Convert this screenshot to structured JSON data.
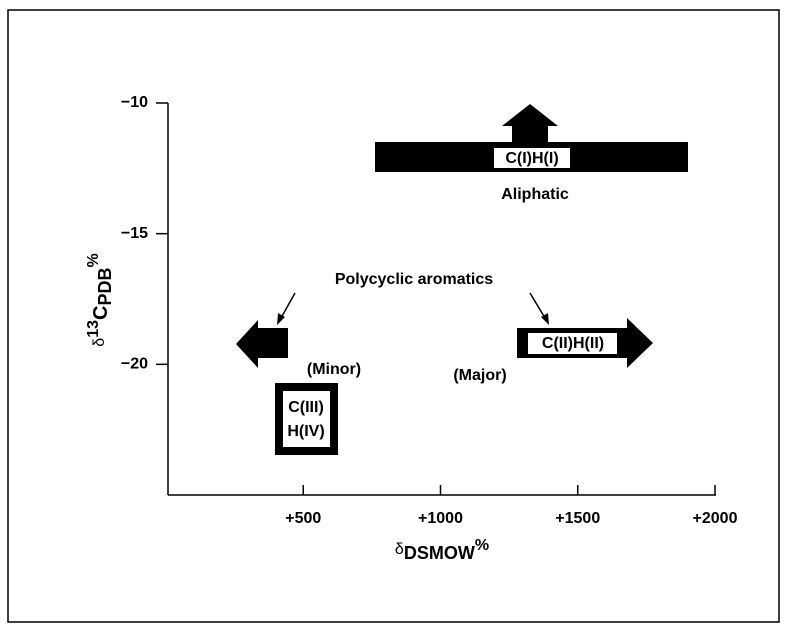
{
  "axes": {
    "x_label": {
      "symbol": "δ",
      "main": "D",
      "sub": "SMOW",
      "unit": "%"
    },
    "y_label": {
      "symbol": "δ",
      "sup": "13",
      "main": "C",
      "sub": "PDB",
      "unit": "%"
    },
    "xlim": [
      0,
      2000
    ],
    "xticks": [
      {
        "value": 500,
        "label": "+500"
      },
      {
        "value": 1000,
        "label": "+1000"
      },
      {
        "value": 1500,
        "label": "+1500"
      },
      {
        "value": 2000,
        "label": "+2000"
      }
    ],
    "ylim": [
      -25,
      -10
    ],
    "yticks": [
      {
        "value": -10,
        "label": "−10"
      },
      {
        "value": -15,
        "label": "−15"
      },
      {
        "value": -20,
        "label": "−20"
      }
    ]
  },
  "labels": {
    "aliphatic_box": "C(I)H(I)",
    "aliphatic": "Aliphatic",
    "polycyclic": "Polycyclic aromatics",
    "major_box": "C(II)H(II)",
    "minor": "(Minor)",
    "major": "(Major)",
    "box_line1": "C(III)",
    "box_line2": "H(IV)"
  }
}
